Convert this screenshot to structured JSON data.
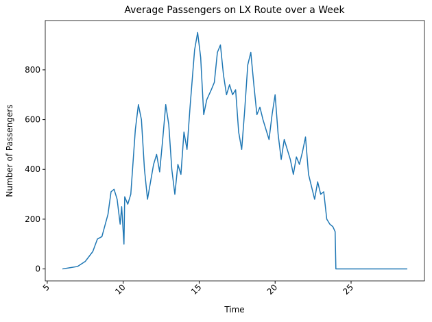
{
  "chart_data": {
    "type": "line",
    "title": "Average Passengers on LX Route over a Week",
    "xlabel": "Time",
    "ylabel": "Number of Passengers",
    "x": [
      6.0,
      6.5,
      7.0,
      7.5,
      8.0,
      8.3,
      8.6,
      9.0,
      9.2,
      9.4,
      9.6,
      9.8,
      9.9,
      10.05,
      10.1,
      10.3,
      10.5,
      10.8,
      11.0,
      11.2,
      11.4,
      11.6,
      11.8,
      12.0,
      12.2,
      12.4,
      12.6,
      12.8,
      13.0,
      13.2,
      13.4,
      13.6,
      13.8,
      14.0,
      14.2,
      14.4,
      14.7,
      14.9,
      15.1,
      15.3,
      15.5,
      15.8,
      16.0,
      16.2,
      16.4,
      16.6,
      16.8,
      17.0,
      17.2,
      17.4,
      17.6,
      17.8,
      18.0,
      18.2,
      18.4,
      18.6,
      18.8,
      19.0,
      19.2,
      19.4,
      19.6,
      19.8,
      20.0,
      20.2,
      20.4,
      20.6,
      20.8,
      21.0,
      21.2,
      21.4,
      21.6,
      21.8,
      22.0,
      22.2,
      22.4,
      22.6,
      22.8,
      23.0,
      23.2,
      23.4,
      23.6,
      23.8,
      23.95,
      24.0,
      28.7
    ],
    "series": [
      {
        "name": "Passengers",
        "color": "#1f77b4",
        "values": [
          0,
          5,
          10,
          30,
          70,
          120,
          130,
          220,
          310,
          320,
          280,
          180,
          250,
          100,
          290,
          260,
          300,
          560,
          660,
          600,
          400,
          280,
          350,
          420,
          460,
          390,
          520,
          660,
          580,
          400,
          300,
          420,
          380,
          550,
          480,
          650,
          880,
          950,
          850,
          620,
          680,
          720,
          750,
          870,
          900,
          780,
          700,
          740,
          700,
          720,
          550,
          480,
          640,
          820,
          870,
          740,
          620,
          650,
          600,
          560,
          520,
          620,
          700,
          540,
          440,
          520,
          480,
          440,
          380,
          450,
          420,
          470,
          530,
          380,
          330,
          280,
          350,
          300,
          310,
          200,
          180,
          170,
          150,
          0,
          0
        ]
      }
    ],
    "xlim": [
      4.87,
      29.83
    ],
    "ylim": [
      -48,
      998
    ],
    "xticks": [
      5,
      10,
      15,
      20,
      25
    ],
    "yticks": [
      0,
      200,
      400,
      600,
      800
    ]
  }
}
